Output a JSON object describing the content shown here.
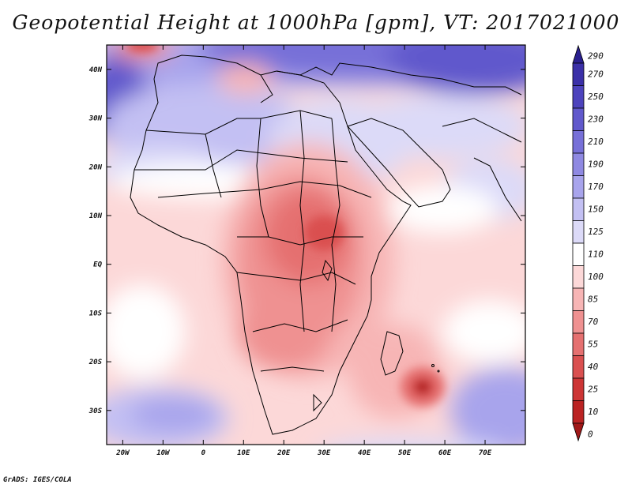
{
  "title": "Geopotential Height at 1000hPa [gpm], VT: 2017021000",
  "credit": "GrADS: IGES/COLA",
  "map": {
    "variable": "Geopotential Height",
    "level": "1000hPa",
    "units": "gpm",
    "valid_time": "2017021000",
    "lon_range": [
      -24,
      80
    ],
    "lat_range": [
      -37,
      45
    ],
    "lat_ticks": [
      {
        "value": 40,
        "label": "40N"
      },
      {
        "value": 30,
        "label": "30N"
      },
      {
        "value": 20,
        "label": "20N"
      },
      {
        "value": 10,
        "label": "10N"
      },
      {
        "value": 0,
        "label": "EQ"
      },
      {
        "value": -10,
        "label": "10S"
      },
      {
        "value": -20,
        "label": "20S"
      },
      {
        "value": -30,
        "label": "30S"
      }
    ],
    "lon_ticks": [
      {
        "value": -20,
        "label": "20W"
      },
      {
        "value": -10,
        "label": "10W"
      },
      {
        "value": 0,
        "label": "0"
      },
      {
        "value": 10,
        "label": "10E"
      },
      {
        "value": 20,
        "label": "20E"
      },
      {
        "value": 30,
        "label": "30E"
      },
      {
        "value": 40,
        "label": "40E"
      },
      {
        "value": 50,
        "label": "50E"
      },
      {
        "value": 60,
        "label": "60E"
      },
      {
        "value": 70,
        "label": "70E"
      }
    ]
  },
  "colorbar": {
    "levels": [
      "290",
      "270",
      "250",
      "230",
      "210",
      "190",
      "170",
      "150",
      "125",
      "110",
      "100",
      "85",
      "70",
      "55",
      "40",
      "25",
      "10",
      "0"
    ],
    "colors": [
      "#2a1f8f",
      "#3b30a8",
      "#4d43bd",
      "#6159cc",
      "#7770d8",
      "#8f89e2",
      "#a8a4ec",
      "#c3c0f3",
      "#dcdaf8",
      "#ffffff",
      "#fcd8d8",
      "#f7b5b5",
      "#ef9191",
      "#e57070",
      "#da5050",
      "#cd3535",
      "#bb2323",
      "#a01818"
    ]
  },
  "features": [
    {
      "name": "Low near Mascarene Islands",
      "lon": 55,
      "lat": -26
    },
    {
      "name": "Low over Central Africa",
      "lon": 30,
      "lat": 4
    },
    {
      "name": "High over Atlantic",
      "lon": -22,
      "lat": 33
    },
    {
      "name": "Low over Mediterranean",
      "lon": 12,
      "lat": 40
    },
    {
      "name": "Low off Iberia",
      "lon": -12,
      "lat": 44
    }
  ]
}
